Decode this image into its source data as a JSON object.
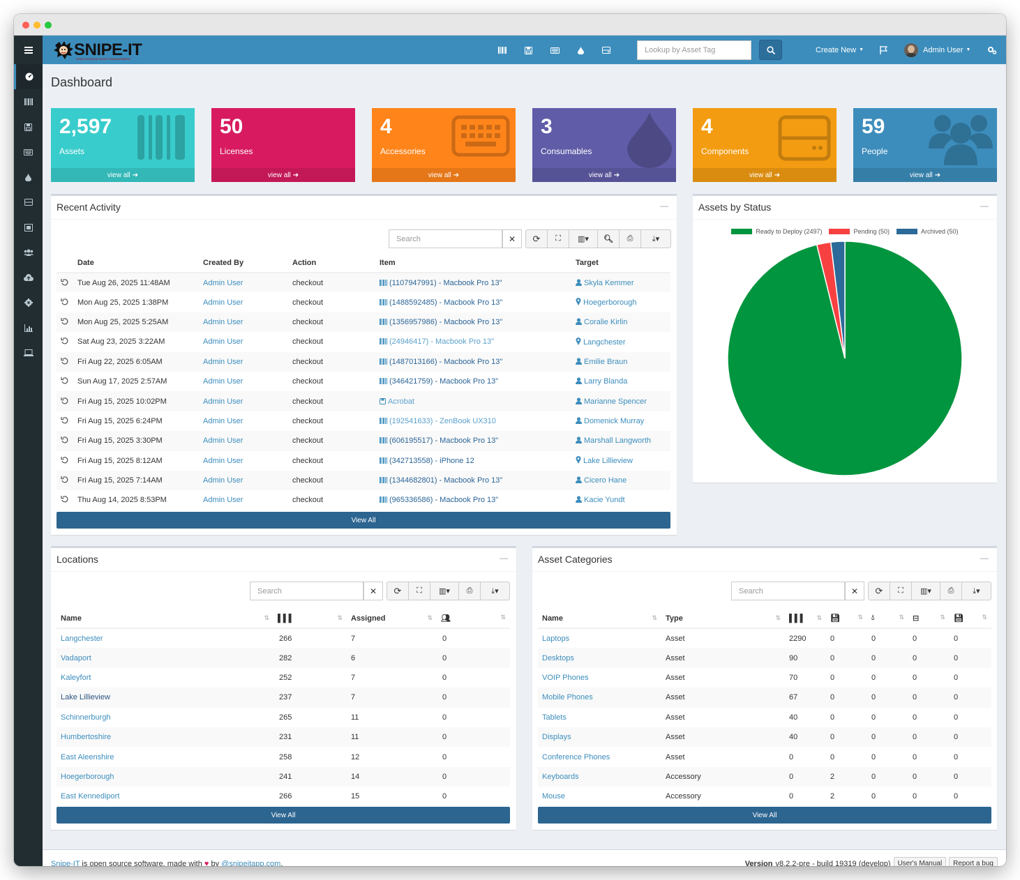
{
  "topnav": {
    "logo": "SNIPE-IT",
    "logo_sub": "OPEN SOURCE ASSET MANAGEMENT",
    "lookup_placeholder": "Lookup by Asset Tag",
    "create_new": "Create New",
    "user": "Admin User"
  },
  "page": {
    "title": "Dashboard"
  },
  "tiles": [
    {
      "count": "2,597",
      "label": "Assets",
      "footer": "view all",
      "color": "#39cccc",
      "icon": "barcode-icon"
    },
    {
      "count": "50",
      "label": "Licenses",
      "footer": "view all",
      "color": "#d81b60",
      "icon": "floppy-icon"
    },
    {
      "count": "4",
      "label": "Accessories",
      "footer": "view all",
      "color": "#ff851b",
      "icon": "keyboard-icon"
    },
    {
      "count": "3",
      "label": "Consumables",
      "footer": "view all",
      "color": "#605ca8",
      "icon": "tint-icon"
    },
    {
      "count": "4",
      "label": "Components",
      "footer": "view all",
      "color": "#f39c12",
      "icon": "hdd-icon"
    },
    {
      "count": "59",
      "label": "People",
      "footer": "view all",
      "color": "#3c8dbc",
      "icon": "users-icon"
    }
  ],
  "recent_activity": {
    "title": "Recent Activity",
    "search_placeholder": "Search",
    "columns": [
      "Date",
      "Created By",
      "Action",
      "Item",
      "Target"
    ],
    "rows": [
      {
        "date": "Tue Aug 26, 2025 11:48AM",
        "by": "Admin User",
        "action": "checkout",
        "item": "(1107947991) - Macbook Pro 13\"",
        "target": "Skyla Kemmer",
        "ttype": "user",
        "itype": "asset",
        "idark": true
      },
      {
        "date": "Mon Aug 25, 2025 1:38PM",
        "by": "Admin User",
        "action": "checkout",
        "item": "(1488592485) - Macbook Pro 13\"",
        "target": "Hoegerborough",
        "ttype": "location",
        "itype": "asset",
        "idark": true
      },
      {
        "date": "Mon Aug 25, 2025 5:25AM",
        "by": "Admin User",
        "action": "checkout",
        "item": "(1356957986) - Macbook Pro 13\"",
        "target": "Coralie Kirlin",
        "ttype": "user",
        "itype": "asset",
        "idark": true
      },
      {
        "date": "Sat Aug 23, 2025 3:22AM",
        "by": "Admin User",
        "action": "checkout",
        "item": "(24946417) - Macbook Pro 13\"",
        "target": "Langchester",
        "ttype": "location",
        "itype": "asset",
        "idark": false
      },
      {
        "date": "Fri Aug 22, 2025 6:05AM",
        "by": "Admin User",
        "action": "checkout",
        "item": "(1487013166) - Macbook Pro 13\"",
        "target": "Emilie Braun",
        "ttype": "user",
        "itype": "asset",
        "idark": true
      },
      {
        "date": "Sun Aug 17, 2025 2:57AM",
        "by": "Admin User",
        "action": "checkout",
        "item": "(346421759) - Macbook Pro 13\"",
        "target": "Larry Blanda",
        "ttype": "user",
        "itype": "asset",
        "idark": true
      },
      {
        "date": "Fri Aug 15, 2025 10:02PM",
        "by": "Admin User",
        "action": "checkout",
        "item": "Acrobat",
        "target": "Marianne Spencer",
        "ttype": "user",
        "itype": "license",
        "idark": false
      },
      {
        "date": "Fri Aug 15, 2025 6:24PM",
        "by": "Admin User",
        "action": "checkout",
        "item": "(192541633) - ZenBook UX310",
        "target": "Domenick Murray",
        "ttype": "user",
        "itype": "asset",
        "idark": false
      },
      {
        "date": "Fri Aug 15, 2025 3:30PM",
        "by": "Admin User",
        "action": "checkout",
        "item": "(606195517) - Macbook Pro 13\"",
        "target": "Marshall Langworth",
        "ttype": "user",
        "itype": "asset",
        "idark": true
      },
      {
        "date": "Fri Aug 15, 2025 8:12AM",
        "by": "Admin User",
        "action": "checkout",
        "item": "(342713558) - iPhone 12",
        "target": "Lake Lillieview",
        "ttype": "location",
        "itype": "asset",
        "idark": true
      },
      {
        "date": "Fri Aug 15, 2025 7:14AM",
        "by": "Admin User",
        "action": "checkout",
        "item": "(1344682801) - Macbook Pro 13\"",
        "target": "Cicero Hane",
        "ttype": "user",
        "itype": "asset",
        "idark": true
      },
      {
        "date": "Thu Aug 14, 2025 8:53PM",
        "by": "Admin User",
        "action": "checkout",
        "item": "(965336586) - Macbook Pro 13\"",
        "target": "Kacie Yundt",
        "ttype": "user",
        "itype": "asset",
        "idark": true
      }
    ],
    "view_all": "View All"
  },
  "assets_by_status": {
    "title": "Assets by Status",
    "chart_data": {
      "type": "pie",
      "labels": [
        "Ready to Deploy (2497)",
        "Pending (50)",
        "Archived (50)"
      ],
      "values": [
        2497,
        50,
        50
      ],
      "colors": [
        "#00953e",
        "#f74040",
        "#2b6a99"
      ],
      "legend": "top"
    }
  },
  "locations": {
    "title": "Locations",
    "search_placeholder": "Search",
    "columns": [
      "Name",
      "",
      "Assigned",
      ""
    ],
    "rows": [
      {
        "name": "Langchester",
        "assets": "266",
        "assigned": "7",
        "users": "0",
        "dark": false
      },
      {
        "name": "Vadaport",
        "assets": "282",
        "assigned": "6",
        "users": "0",
        "dark": false
      },
      {
        "name": "Kaleyfort",
        "assets": "252",
        "assigned": "7",
        "users": "0",
        "dark": false
      },
      {
        "name": "Lake Lillieview",
        "assets": "237",
        "assigned": "7",
        "users": "0",
        "dark": true
      },
      {
        "name": "Schinnerburgh",
        "assets": "265",
        "assigned": "11",
        "users": "0",
        "dark": false
      },
      {
        "name": "Humbertoshire",
        "assets": "231",
        "assigned": "11",
        "users": "0",
        "dark": false
      },
      {
        "name": "East Aleenshire",
        "assets": "258",
        "assigned": "12",
        "users": "0",
        "dark": false
      },
      {
        "name": "Hoegerborough",
        "assets": "241",
        "assigned": "14",
        "users": "0",
        "dark": false
      },
      {
        "name": "East Kennediport",
        "assets": "266",
        "assigned": "15",
        "users": "0",
        "dark": false
      }
    ],
    "view_all": "View All"
  },
  "categories": {
    "title": "Asset Categories",
    "search_placeholder": "Search",
    "columns": [
      "Name",
      "Type"
    ],
    "rows": [
      {
        "name": "Laptops",
        "type": "Asset",
        "a": "2290",
        "b": "0",
        "c": "0",
        "d": "0",
        "e": "0"
      },
      {
        "name": "Desktops",
        "type": "Asset",
        "a": "90",
        "b": "0",
        "c": "0",
        "d": "0",
        "e": "0"
      },
      {
        "name": "VOIP Phones",
        "type": "Asset",
        "a": "70",
        "b": "0",
        "c": "0",
        "d": "0",
        "e": "0"
      },
      {
        "name": "Mobile Phones",
        "type": "Asset",
        "a": "67",
        "b": "0",
        "c": "0",
        "d": "0",
        "e": "0"
      },
      {
        "name": "Tablets",
        "type": "Asset",
        "a": "40",
        "b": "0",
        "c": "0",
        "d": "0",
        "e": "0"
      },
      {
        "name": "Displays",
        "type": "Asset",
        "a": "40",
        "b": "0",
        "c": "0",
        "d": "0",
        "e": "0"
      },
      {
        "name": "Conference Phones",
        "type": "Asset",
        "a": "0",
        "b": "0",
        "c": "0",
        "d": "0",
        "e": "0"
      },
      {
        "name": "Keyboards",
        "type": "Accessory",
        "a": "0",
        "b": "2",
        "c": "0",
        "d": "0",
        "e": "0"
      },
      {
        "name": "Mouse",
        "type": "Accessory",
        "a": "0",
        "b": "2",
        "c": "0",
        "d": "0",
        "e": "0"
      }
    ],
    "view_all": "View All"
  },
  "footer": {
    "brand": "Snipe-IT",
    "text1": " is open source software, made with ",
    "text2": " by ",
    "handle": "@snipeitapp.com",
    "text3": ".",
    "version_label": "Version",
    "version": " v8.2.2-pre - build 19319 (develop)",
    "manual": "User's Manual",
    "bug": "Report a bug"
  }
}
